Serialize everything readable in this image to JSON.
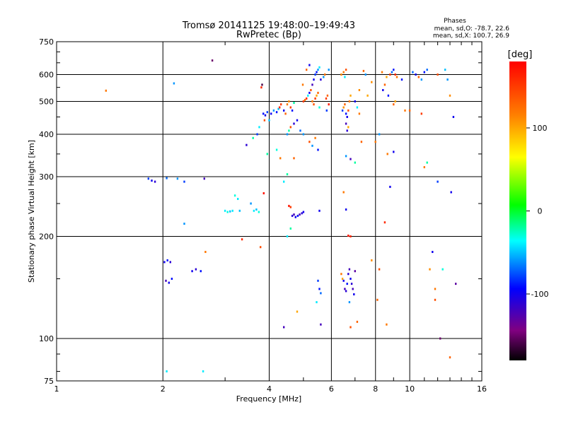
{
  "chart_data": {
    "type": "scatter",
    "title": "Tromsø 20141125 19:48:00–19:49:43",
    "subtitle": "RwPretec (Bp)",
    "xlabel": "Frequency [MHz]",
    "ylabel": "Stationary phase Virtual Height [km]",
    "x_scale": "log",
    "y_scale": "log",
    "xlim": [
      1,
      16
    ],
    "ylim": [
      75,
      750
    ],
    "x_ticks": [
      1,
      2,
      4,
      6,
      8,
      10,
      16
    ],
    "x_tick_labels": [
      "1",
      "2",
      "4",
      "6",
      "8",
      "10",
      "16"
    ],
    "y_ticks": [
      75,
      100,
      200,
      300,
      400,
      500,
      600,
      750
    ],
    "y_tick_labels": [
      "75",
      "100",
      "200",
      "300",
      "400",
      "500",
      "600",
      "750"
    ],
    "grid": true,
    "annotation": {
      "heading": "Phases",
      "line1": "mean, sd,O: -78.7, 22.6",
      "line2": "mean, sd,X: 100.7, 26.9"
    },
    "colorbar": {
      "label": "[deg]",
      "range": [
        -180,
        180
      ],
      "ticks": [
        100,
        0,
        -100
      ],
      "tick_labels": [
        "100",
        "0",
        "-100"
      ]
    },
    "series": [
      {
        "points": [
          [
            1.38,
            538,
            120
          ],
          [
            1.82,
            296,
            -80
          ],
          [
            1.86,
            292,
            -100
          ],
          [
            1.9,
            290,
            -110
          ],
          [
            2.02,
            168,
            -100
          ],
          [
            2.06,
            170,
            -90
          ],
          [
            2.1,
            168,
            -110
          ],
          [
            2.04,
            148,
            -120
          ],
          [
            2.08,
            146,
            -100
          ],
          [
            2.12,
            150,
            -90
          ],
          [
            2.15,
            565,
            -60
          ],
          [
            2.05,
            297,
            -70
          ],
          [
            2.2,
            296,
            -60
          ],
          [
            2.3,
            290,
            -80
          ],
          [
            2.42,
            158,
            -100
          ],
          [
            2.48,
            160,
            -110
          ],
          [
            2.56,
            158,
            -90
          ],
          [
            2.62,
            296,
            -120
          ],
          [
            2.64,
            180,
            120
          ],
          [
            2.76,
            660,
            -150
          ],
          [
            2.05,
            80,
            -40
          ],
          [
            2.6,
            80,
            -40
          ],
          [
            2.3,
            218,
            -60
          ],
          [
            3.0,
            238,
            -40
          ],
          [
            3.05,
            236,
            -30
          ],
          [
            3.1,
            237,
            -50
          ],
          [
            3.15,
            238,
            -40
          ],
          [
            3.2,
            264,
            -30
          ],
          [
            3.26,
            258,
            -40
          ],
          [
            3.3,
            238,
            -50
          ],
          [
            3.35,
            196,
            160
          ],
          [
            3.45,
            372,
            -110
          ],
          [
            3.55,
            250,
            -60
          ],
          [
            3.62,
            238,
            -40
          ],
          [
            3.68,
            240,
            -50
          ],
          [
            3.74,
            236,
            -30
          ],
          [
            3.6,
            390,
            -20
          ],
          [
            3.7,
            400,
            -80
          ],
          [
            3.75,
            420,
            -40
          ],
          [
            3.8,
            550,
            160
          ],
          [
            3.82,
            560,
            -160
          ],
          [
            3.85,
            460,
            -90
          ],
          [
            3.9,
            455,
            -100
          ],
          [
            3.95,
            465,
            -80
          ],
          [
            3.78,
            186,
            140
          ],
          [
            3.88,
            440,
            140
          ],
          [
            3.86,
            268,
            170
          ],
          [
            3.95,
            350,
            -20
          ],
          [
            4.0,
            440,
            -50
          ],
          [
            4.05,
            460,
            -100
          ],
          [
            4.12,
            470,
            -60
          ],
          [
            4.2,
            465,
            -90
          ],
          [
            4.25,
            475,
            -50
          ],
          [
            4.28,
            480,
            160
          ],
          [
            4.32,
            490,
            150
          ],
          [
            4.4,
            470,
            -100
          ],
          [
            4.45,
            460,
            130
          ],
          [
            4.5,
            490,
            120
          ],
          [
            4.55,
            500,
            110
          ],
          [
            4.6,
            480,
            150
          ],
          [
            4.65,
            470,
            -90
          ],
          [
            4.7,
            495,
            -20
          ],
          [
            4.5,
            400,
            -60
          ],
          [
            4.55,
            410,
            -20
          ],
          [
            4.6,
            420,
            140
          ],
          [
            4.7,
            430,
            -110
          ],
          [
            4.8,
            440,
            -100
          ],
          [
            4.9,
            410,
            -70
          ],
          [
            5.0,
            400,
            -60
          ],
          [
            4.2,
            360,
            -30
          ],
          [
            4.3,
            340,
            120
          ],
          [
            4.4,
            290,
            -40
          ],
          [
            4.5,
            305,
            -20
          ],
          [
            4.55,
            246,
            170
          ],
          [
            4.6,
            244,
            150
          ],
          [
            4.65,
            230,
            -110
          ],
          [
            4.7,
            232,
            -120
          ],
          [
            4.75,
            228,
            -100
          ],
          [
            4.82,
            230,
            -90
          ],
          [
            4.88,
            232,
            -120
          ],
          [
            4.95,
            234,
            -110
          ],
          [
            5.0,
            236,
            -100
          ],
          [
            4.5,
            200,
            -40
          ],
          [
            4.6,
            211,
            -20
          ],
          [
            4.4,
            108,
            -120
          ],
          [
            4.8,
            120,
            100
          ],
          [
            4.7,
            340,
            130
          ],
          [
            5.0,
            500,
            150
          ],
          [
            5.05,
            505,
            120
          ],
          [
            5.1,
            510,
            160
          ],
          [
            5.15,
            520,
            -40
          ],
          [
            5.2,
            530,
            -100
          ],
          [
            5.25,
            540,
            140
          ],
          [
            5.3,
            560,
            -120
          ],
          [
            5.35,
            580,
            -100
          ],
          [
            5.4,
            600,
            -80
          ],
          [
            5.45,
            610,
            -90
          ],
          [
            5.5,
            620,
            -60
          ],
          [
            5.55,
            630,
            -40
          ],
          [
            5.3,
            500,
            120
          ],
          [
            5.35,
            490,
            140
          ],
          [
            5.4,
            510,
            150
          ],
          [
            5.45,
            520,
            100
          ],
          [
            5.5,
            530,
            130
          ],
          [
            5.55,
            480,
            -30
          ],
          [
            5.2,
            380,
            140
          ],
          [
            5.3,
            370,
            -60
          ],
          [
            5.4,
            390,
            120
          ],
          [
            5.5,
            360,
            -90
          ],
          [
            5.55,
            238,
            -100
          ],
          [
            5.5,
            148,
            -80
          ],
          [
            5.55,
            140,
            -90
          ],
          [
            5.6,
            136,
            -70
          ],
          [
            5.45,
            128,
            -40
          ],
          [
            5.6,
            110,
            -120
          ],
          [
            5.2,
            640,
            -100
          ],
          [
            5.1,
            620,
            130
          ],
          [
            4.98,
            560,
            120
          ],
          [
            5.6,
            580,
            -110
          ],
          [
            5.7,
            590,
            -60
          ],
          [
            5.75,
            600,
            120
          ],
          [
            5.8,
            510,
            150
          ],
          [
            5.85,
            520,
            130
          ],
          [
            5.9,
            490,
            170
          ],
          [
            5.82,
            470,
            -80
          ],
          [
            5.9,
            620,
            -60
          ],
          [
            6.4,
            600,
            110
          ],
          [
            6.5,
            610,
            120
          ],
          [
            6.55,
            590,
            -40
          ],
          [
            6.6,
            620,
            140
          ],
          [
            6.45,
            470,
            -80
          ],
          [
            6.5,
            480,
            110
          ],
          [
            6.55,
            490,
            130
          ],
          [
            6.6,
            460,
            -90
          ],
          [
            6.65,
            450,
            -100
          ],
          [
            6.7,
            470,
            140
          ],
          [
            6.75,
            500,
            120
          ],
          [
            6.8,
            520,
            100
          ],
          [
            6.6,
            430,
            -120
          ],
          [
            6.65,
            410,
            -110
          ],
          [
            6.7,
            420,
            100
          ],
          [
            6.5,
            270,
            120
          ],
          [
            6.6,
            240,
            -100
          ],
          [
            6.7,
            201,
            170
          ],
          [
            6.8,
            200,
            160
          ],
          [
            6.6,
            345,
            -60
          ],
          [
            6.8,
            338,
            -120
          ],
          [
            7.0,
            330,
            -20
          ],
          [
            6.4,
            155,
            120
          ],
          [
            6.45,
            150,
            100
          ],
          [
            6.5,
            148,
            -100
          ],
          [
            6.55,
            140,
            -120
          ],
          [
            6.6,
            138,
            -110
          ],
          [
            6.65,
            145,
            -90
          ],
          [
            6.7,
            155,
            -110
          ],
          [
            6.75,
            160,
            -120
          ],
          [
            6.8,
            150,
            -100
          ],
          [
            6.85,
            145,
            -110
          ],
          [
            6.9,
            140,
            -120
          ],
          [
            6.95,
            135,
            -100
          ],
          [
            7.0,
            158,
            -130
          ],
          [
            6.75,
            128,
            -60
          ],
          [
            6.8,
            108,
            140
          ],
          [
            7.1,
            112,
            130
          ],
          [
            7.0,
            500,
            -100
          ],
          [
            7.1,
            480,
            -40
          ],
          [
            7.2,
            460,
            120
          ],
          [
            7.3,
            380,
            130
          ],
          [
            7.2,
            540,
            110
          ],
          [
            7.4,
            615,
            130
          ],
          [
            7.5,
            600,
            -60
          ],
          [
            7.6,
            520,
            100
          ],
          [
            7.8,
            570,
            110
          ],
          [
            8.0,
            380,
            120
          ],
          [
            8.2,
            400,
            -60
          ],
          [
            8.35,
            610,
            120
          ],
          [
            8.4,
            540,
            -100
          ],
          [
            8.5,
            560,
            130
          ],
          [
            8.6,
            590,
            100
          ],
          [
            8.65,
            350,
            120
          ],
          [
            8.7,
            520,
            -90
          ],
          [
            8.8,
            600,
            150
          ],
          [
            8.9,
            610,
            -70
          ],
          [
            9.0,
            620,
            -90
          ],
          [
            9.1,
            600,
            160
          ],
          [
            9.2,
            590,
            120
          ],
          [
            9.0,
            490,
            130
          ],
          [
            9.1,
            500,
            100
          ],
          [
            8.2,
            160,
            140
          ],
          [
            8.1,
            130,
            130
          ],
          [
            8.5,
            220,
            160
          ],
          [
            8.8,
            280,
            -100
          ],
          [
            9.0,
            355,
            -100
          ],
          [
            7.8,
            170,
            110
          ],
          [
            8.6,
            110,
            120
          ],
          [
            9.5,
            580,
            -90
          ],
          [
            9.7,
            470,
            120
          ],
          [
            10.0,
            470,
            130
          ],
          [
            10.2,
            610,
            -70
          ],
          [
            10.4,
            600,
            -100
          ],
          [
            10.6,
            590,
            130
          ],
          [
            10.8,
            580,
            -60
          ],
          [
            11.0,
            610,
            -90
          ],
          [
            11.2,
            620,
            -70
          ],
          [
            10.8,
            460,
            150
          ],
          [
            11.0,
            320,
            120
          ],
          [
            11.2,
            330,
            -20
          ],
          [
            11.4,
            160,
            110
          ],
          [
            11.6,
            180,
            -100
          ],
          [
            11.8,
            140,
            120
          ],
          [
            12.0,
            290,
            -80
          ],
          [
            12.2,
            100,
            -150
          ],
          [
            12.6,
            620,
            -50
          ],
          [
            12.8,
            580,
            -60
          ],
          [
            13.0,
            520,
            110
          ],
          [
            13.1,
            270,
            -100
          ],
          [
            13.3,
            450,
            -100
          ],
          [
            13.5,
            145,
            -130
          ],
          [
            12.4,
            160,
            -30
          ],
          [
            13.0,
            88,
            130
          ],
          [
            11.8,
            130,
            140
          ],
          [
            12.0,
            600,
            140
          ]
        ]
      }
    ]
  }
}
